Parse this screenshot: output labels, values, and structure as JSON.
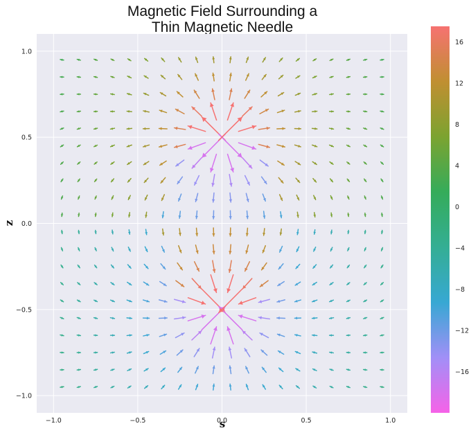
{
  "chart_data": {
    "type": "quiver",
    "title_lines": [
      "Magnetic Field Surrounding a",
      "Thin Magnetic Needle"
    ],
    "xlabel": "s",
    "ylabel": "z",
    "xlim": [
      -1.1,
      1.1
    ],
    "ylim": [
      -1.1,
      1.1
    ],
    "x_ticks": [
      -1.0,
      -0.5,
      0.0,
      0.5,
      1.0
    ],
    "x_tick_labels": [
      "−1.0",
      "−0.5",
      "0.0",
      "0.5",
      "1.0"
    ],
    "y_ticks": [
      1.0,
      0.5,
      0.0,
      -0.5,
      -1.0
    ],
    "y_tick_labels": [
      "1.0",
      "0.5",
      "0.0",
      "−0.5",
      "−1.0"
    ],
    "grid": true,
    "background": "#eaeaf2",
    "colorbar": {
      "range": [
        -20,
        17.5
      ],
      "ticks": [
        16,
        12,
        8,
        4,
        0,
        -4,
        -8,
        -12,
        -16
      ],
      "tick_labels": [
        "16",
        "12",
        "8",
        "4",
        "0",
        "−4",
        "−8",
        "−12",
        "−16"
      ],
      "colormap": "husl",
      "stops": [
        "#f662e8",
        "#a18ff7",
        "#37a8d3",
        "#34ae94",
        "#35ac5a",
        "#7ca330",
        "#c08f31",
        "#f67271"
      ]
    },
    "field": {
      "grid_s": [
        -0.95,
        -0.85,
        -0.75,
        -0.65,
        -0.55,
        -0.45,
        -0.35,
        -0.25,
        -0.15,
        -0.05,
        0.05,
        0.15,
        0.25,
        0.35,
        0.45,
        0.55,
        0.65,
        0.75,
        0.85,
        0.95
      ],
      "grid_z": [
        -0.95,
        -0.85,
        -0.75,
        -0.65,
        -0.55,
        -0.45,
        -0.35,
        -0.25,
        -0.15,
        -0.05,
        0.05,
        0.15,
        0.25,
        0.35,
        0.45,
        0.55,
        0.65,
        0.75,
        0.85,
        0.95
      ],
      "source": "thin magnetic needle: north pole at z = 0.5, south pole at z = -0.5"
    }
  }
}
